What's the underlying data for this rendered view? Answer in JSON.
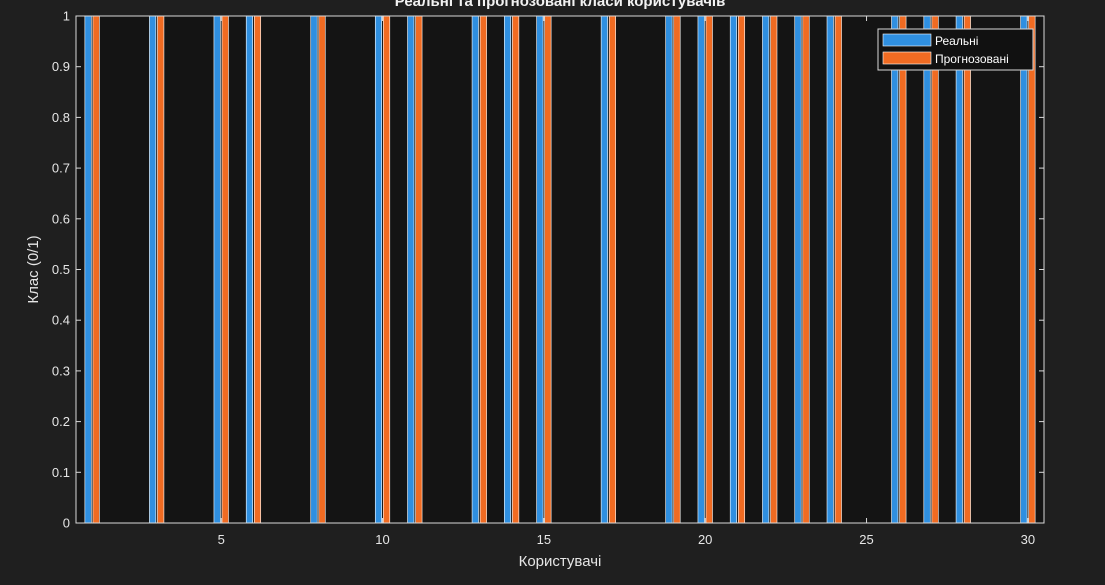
{
  "chart_data": {
    "type": "bar",
    "title": "Реальні та прогнозовані класи користувачів",
    "xlabel": "Користувачі",
    "ylabel": "Клас (0/1)",
    "x": [
      1,
      2,
      3,
      4,
      5,
      6,
      7,
      8,
      9,
      10,
      11,
      12,
      13,
      14,
      15,
      16,
      17,
      18,
      19,
      20,
      21,
      22,
      23,
      24,
      25,
      26,
      27,
      28,
      29,
      30
    ],
    "xlim": [
      0.5,
      30.5
    ],
    "ylim": [
      0,
      1
    ],
    "xticks": [
      5,
      10,
      15,
      20,
      25,
      30
    ],
    "yticks": [
      0,
      0.1,
      0.2,
      0.3,
      0.4,
      0.5,
      0.6,
      0.7,
      0.8,
      0.9,
      1
    ],
    "xtick_labels": [
      "5",
      "10",
      "15",
      "20",
      "25",
      "30"
    ],
    "ytick_labels": [
      "0",
      "0.1",
      "0.2",
      "0.3",
      "0.4",
      "0.5",
      "0.6",
      "0.7",
      "0.8",
      "0.9",
      "1"
    ],
    "legend_position": "top-right",
    "series": [
      {
        "name": "Реальні",
        "color": "#2f8fe0",
        "values": [
          1,
          0,
          1,
          0,
          1,
          1,
          0,
          1,
          0,
          1,
          1,
          0,
          1,
          1,
          1,
          0,
          1,
          0,
          1,
          1,
          1,
          1,
          1,
          1,
          0,
          1,
          1,
          1,
          0,
          1
        ]
      },
      {
        "name": "Прогнозовані",
        "color": "#f06b22",
        "values": [
          1,
          0,
          1,
          0,
          1,
          1,
          0,
          1,
          0,
          1,
          1,
          0,
          1,
          1,
          1,
          0,
          1,
          0,
          1,
          1,
          1,
          1,
          1,
          1,
          0,
          1,
          1,
          1,
          0,
          1
        ]
      }
    ]
  },
  "colors": {
    "figure_background": "#1f1f1f",
    "axes_background": "#141414",
    "axes_border": "#d9d9d9"
  }
}
